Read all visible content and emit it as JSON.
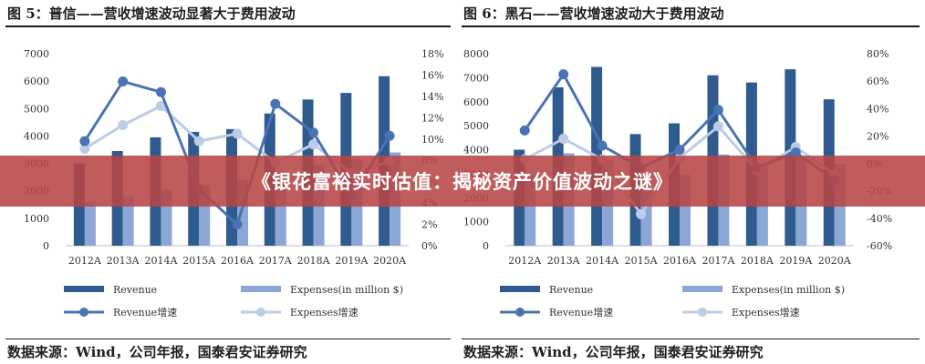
{
  "banner": {
    "text": "《银花富裕实时估值：揭秘资产价值波动之谜》"
  },
  "colors": {
    "revenue": "#2f5b8f",
    "expenses": "#8aa7d6",
    "revenue_growth": "#4a73b5",
    "expenses_growth": "#bccbe6"
  },
  "chart_data": [
    {
      "type": "bar",
      "title": "图 5：普信——营收增速波动显著大于费用波动",
      "source": "数据来源：Wind，公司年报，国泰君安证券研究",
      "categories": [
        "2012A",
        "2013A",
        "2014A",
        "2015A",
        "2016A",
        "2017A",
        "2018A",
        "2019A",
        "2020A"
      ],
      "ylim": [
        0,
        7000
      ],
      "yticks": [
        "0",
        "1000",
        "2000",
        "3000",
        "4000",
        "5000",
        "6000",
        "7000"
      ],
      "y2lim": [
        0,
        18
      ],
      "y2ticks": [
        "0%",
        "2%",
        "4%",
        "6%",
        "8%",
        "10%",
        "12%",
        "14%",
        "16%",
        "18%"
      ],
      "legend": [
        "Revenue",
        "Expenses(in million $)",
        "Revenue增速",
        "Expenses增速"
      ],
      "series": [
        {
          "name": "Revenue",
          "type": "bar",
          "axis": "left",
          "values": [
            3000,
            3450,
            3950,
            4150,
            4250,
            4820,
            5330,
            5570,
            6180
          ]
        },
        {
          "name": "Expenses(in million $)",
          "type": "bar",
          "axis": "left",
          "values": [
            1600,
            1800,
            2050,
            2200,
            2400,
            2700,
            2950,
            3150,
            3400
          ]
        },
        {
          "name": "Revenue增速",
          "type": "line",
          "axis": "right",
          "values": [
            9.8,
            15.4,
            14.4,
            5.3,
            2.0,
            13.3,
            10.6,
            4.7,
            10.3
          ]
        },
        {
          "name": "Expenses增速",
          "type": "line",
          "axis": "right",
          "values": [
            9.1,
            11.3,
            13.1,
            9.8,
            10.5,
            7.8,
            9.5,
            6.8,
            7.9
          ]
        }
      ]
    },
    {
      "type": "bar",
      "title": "图 6：黑石——营收增速波动大于费用波动",
      "source": "数据来源：Wind，公司年报，国泰君安证券研究",
      "categories": [
        "2012A",
        "2013A",
        "2014A",
        "2015A",
        "2016A",
        "2017A",
        "2018A",
        "2019A",
        "2020A"
      ],
      "ylim": [
        0,
        8000
      ],
      "yticks": [
        "0",
        "1000",
        "2000",
        "3000",
        "4000",
        "5000",
        "6000",
        "7000",
        "8000"
      ],
      "y2lim": [
        -60,
        80
      ],
      "y2ticks": [
        "-60%",
        "-40%",
        "-20%",
        "0%",
        "20%",
        "40%",
        "60%",
        "80%"
      ],
      "legend": [
        "Revenue",
        "Expenses(in million $)",
        "Revenue增速",
        "Expenses增速"
      ],
      "series": [
        {
          "name": "Revenue",
          "type": "bar",
          "axis": "left",
          "values": [
            4000,
            6600,
            7450,
            4650,
            5100,
            7100,
            6800,
            7350,
            6100
          ]
        },
        {
          "name": "Expenses(in million $)",
          "type": "bar",
          "axis": "left",
          "values": [
            2950,
            3850,
            3550,
            2850,
            2950,
            3800,
            3350,
            3700,
            3400
          ]
        },
        {
          "name": "Revenue增速",
          "type": "line",
          "axis": "right",
          "values": [
            24,
            65,
            13,
            -3,
            10,
            39,
            -3,
            8,
            -12
          ]
        },
        {
          "name": "Expenses增速",
          "type": "line",
          "axis": "right",
          "values": [
            3,
            18,
            3,
            -37,
            4,
            27,
            -5,
            12,
            -8
          ]
        }
      ]
    }
  ]
}
